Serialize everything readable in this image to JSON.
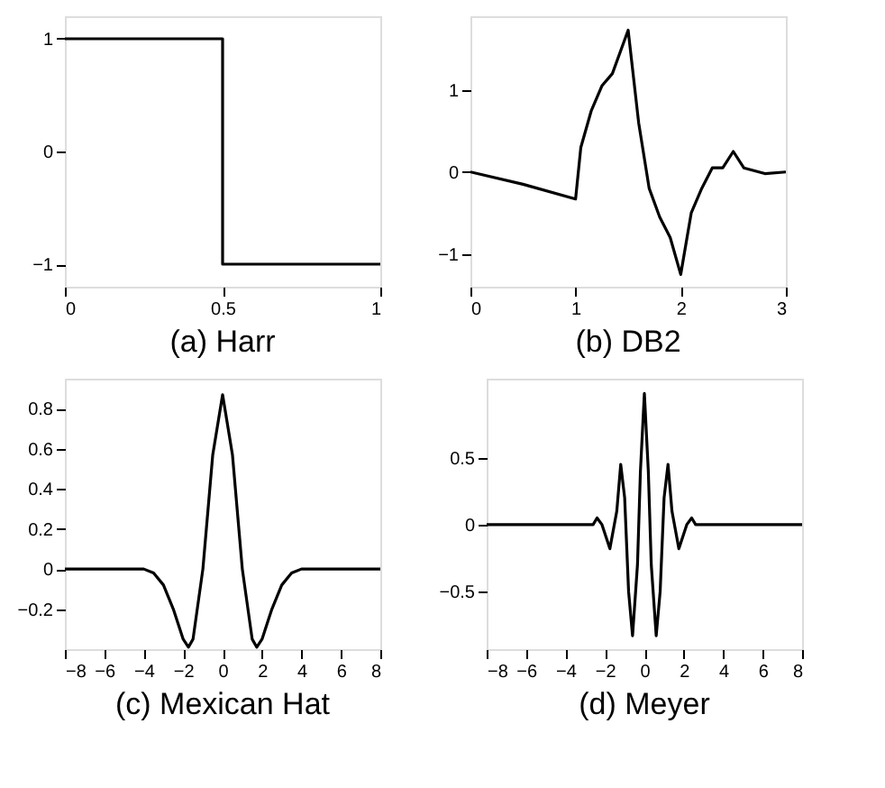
{
  "chart_data": [
    {
      "type": "line",
      "title": "(a) Harr",
      "x": [
        0,
        0.5,
        0.5,
        1
      ],
      "values": [
        1,
        1,
        -1,
        -1
      ],
      "color": "#000000",
      "xlim": [
        0,
        1
      ],
      "xticks": [
        0,
        0.5,
        1
      ],
      "ylim": [
        -1.2,
        1.2
      ],
      "yticks": [
        -1,
        0,
        1
      ],
      "grid": false
    },
    {
      "type": "line",
      "title": "(b) DB2",
      "x": [
        0,
        0.5,
        1,
        1.05,
        1.15,
        1.25,
        1.35,
        1.5,
        1.6,
        1.7,
        1.8,
        1.9,
        2,
        2.1,
        2.2,
        2.3,
        2.4,
        2.5,
        2.6,
        2.8,
        3
      ],
      "values": [
        0,
        -0.15,
        -0.33,
        0.3,
        0.75,
        1.05,
        1.2,
        1.73,
        0.6,
        -0.2,
        -0.55,
        -0.8,
        -1.25,
        -0.5,
        -0.2,
        0.05,
        0.05,
        0.25,
        0.05,
        -0.02,
        0
      ],
      "color": "#000000",
      "xlim": [
        0,
        3
      ],
      "xticks": [
        0,
        1,
        2,
        3
      ],
      "ylim": [
        -1.4,
        1.9
      ],
      "yticks": [
        -1,
        0,
        1
      ],
      "grid": false
    },
    {
      "type": "line",
      "title": "(c) Mexican Hat",
      "x": [
        -8,
        -4,
        -3.5,
        -3,
        -2.5,
        -2,
        -1.73,
        -1.5,
        -1,
        -0.5,
        0,
        0.5,
        1,
        1.5,
        1.73,
        2,
        2.5,
        3,
        3.5,
        4,
        8
      ],
      "values": [
        0,
        0,
        -0.02,
        -0.08,
        -0.2,
        -0.35,
        -0.39,
        -0.35,
        0,
        0.57,
        0.87,
        0.57,
        0,
        -0.35,
        -0.39,
        -0.35,
        -0.2,
        -0.08,
        -0.02,
        0,
        0
      ],
      "color": "#000000",
      "xlim": [
        -8,
        8
      ],
      "xticks": [
        -8,
        -6,
        -4,
        -2,
        0,
        2,
        4,
        6,
        8
      ],
      "ylim": [
        -0.4,
        0.95
      ],
      "yticks": [
        -0.2,
        0,
        0.2,
        0.4,
        0.6,
        0.8
      ],
      "grid": false
    },
    {
      "type": "line",
      "title": "(d) Meyer",
      "x": [
        -8,
        -3,
        -2.6,
        -2.4,
        -2.15,
        -1.75,
        -1.4,
        -1.2,
        -1,
        -0.8,
        -0.6,
        -0.35,
        -0.2,
        0,
        0.2,
        0.35,
        0.6,
        0.8,
        1,
        1.2,
        1.4,
        1.75,
        2.15,
        2.4,
        2.6,
        3,
        8
      ],
      "values": [
        0,
        0,
        0,
        0.05,
        0,
        -0.18,
        0.1,
        0.45,
        0.2,
        -0.5,
        -0.83,
        -0.3,
        0.4,
        0.98,
        0.4,
        -0.3,
        -0.83,
        -0.5,
        0.2,
        0.45,
        0.1,
        -0.18,
        0,
        0.05,
        0,
        0,
        0
      ],
      "color": "#000000",
      "xlim": [
        -8,
        8
      ],
      "xticks": [
        -8,
        -6,
        -4,
        -2,
        0,
        2,
        4,
        6,
        8
      ],
      "ylim": [
        -0.93,
        1.09
      ],
      "yticks": [
        -0.5,
        0,
        0.5
      ],
      "grid": false
    }
  ]
}
